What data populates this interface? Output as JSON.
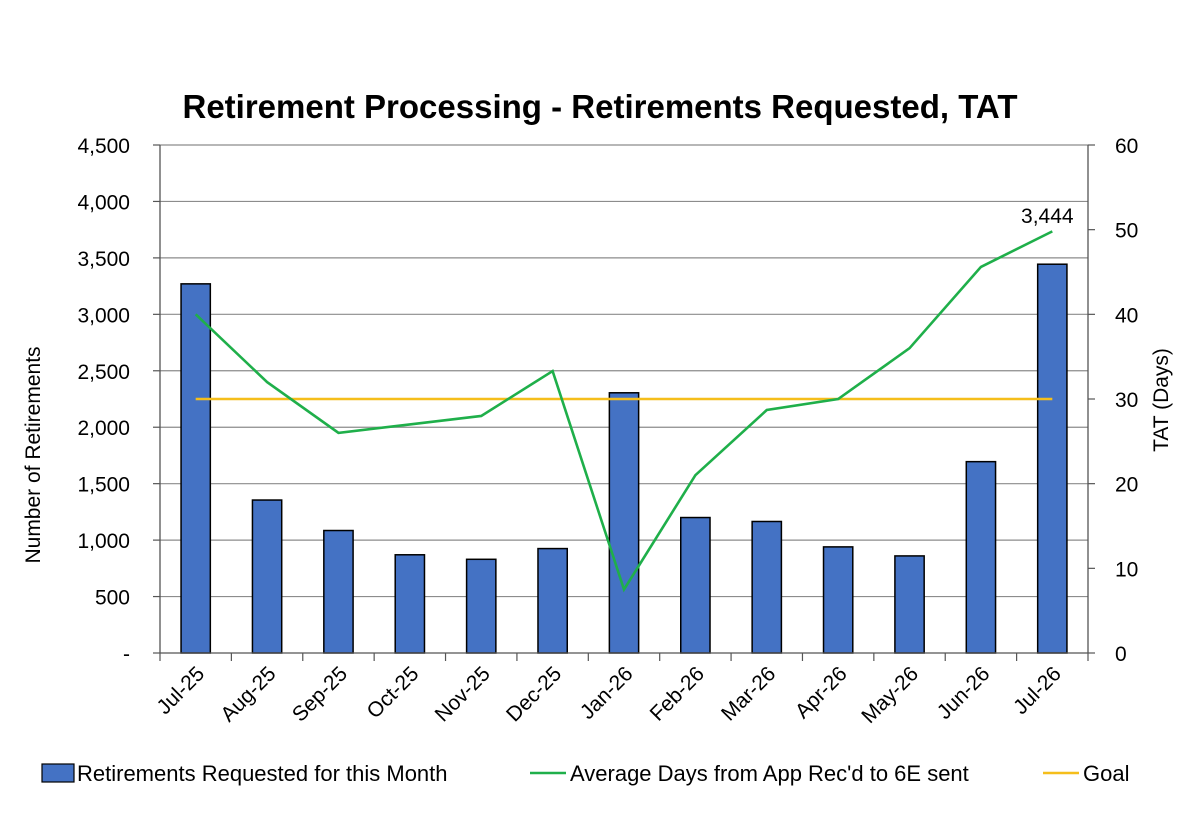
{
  "chart_data": {
    "type": "bar",
    "title": "Retirement Processing - Retirements Requested, TAT",
    "ylabel": "Number of Retirements",
    "y2label": "TAT (Days)",
    "categories": [
      "Jul-25",
      "Aug-25",
      "Sep-25",
      "Oct-25",
      "Nov-25",
      "Dec-25",
      "Jan-26",
      "Feb-26",
      "Mar-26",
      "Apr-26",
      "May-26",
      "Jun-26",
      "Jul-26"
    ],
    "ylim": [
      0,
      4500
    ],
    "y2lim": [
      0,
      60
    ],
    "yticks": [
      "-",
      "500",
      "1,000",
      "1,500",
      "2,000",
      "2,500",
      "3,000",
      "3,500",
      "4,000",
      "4,500"
    ],
    "y2ticks": [
      "0",
      "10",
      "20",
      "30",
      "40",
      "50",
      "60"
    ],
    "grid": true,
    "legend_position": "bottom",
    "series": [
      {
        "name": "Retirements Requested for this Month",
        "type": "bar",
        "axis": "left",
        "color": "#4472C4",
        "values": [
          3270,
          1355,
          1085,
          870,
          830,
          925,
          2305,
          1200,
          1165,
          940,
          860,
          1695,
          3444
        ]
      },
      {
        "name": "Average Days from App Rec'd to 6E sent",
        "type": "line",
        "axis": "right",
        "color": "#1FAF4A",
        "values": [
          40,
          32,
          26,
          27,
          28,
          33.3,
          7.5,
          21,
          28.7,
          30,
          36,
          45.6,
          49.8
        ]
      },
      {
        "name": "Goal",
        "type": "line",
        "axis": "right",
        "color": "#F5BE1B",
        "values": [
          30,
          30,
          30,
          30,
          30,
          30,
          30,
          30,
          30,
          30,
          30,
          30,
          30
        ]
      }
    ],
    "annotations": [
      {
        "text": "3,444",
        "category": "Jul-26"
      }
    ]
  }
}
